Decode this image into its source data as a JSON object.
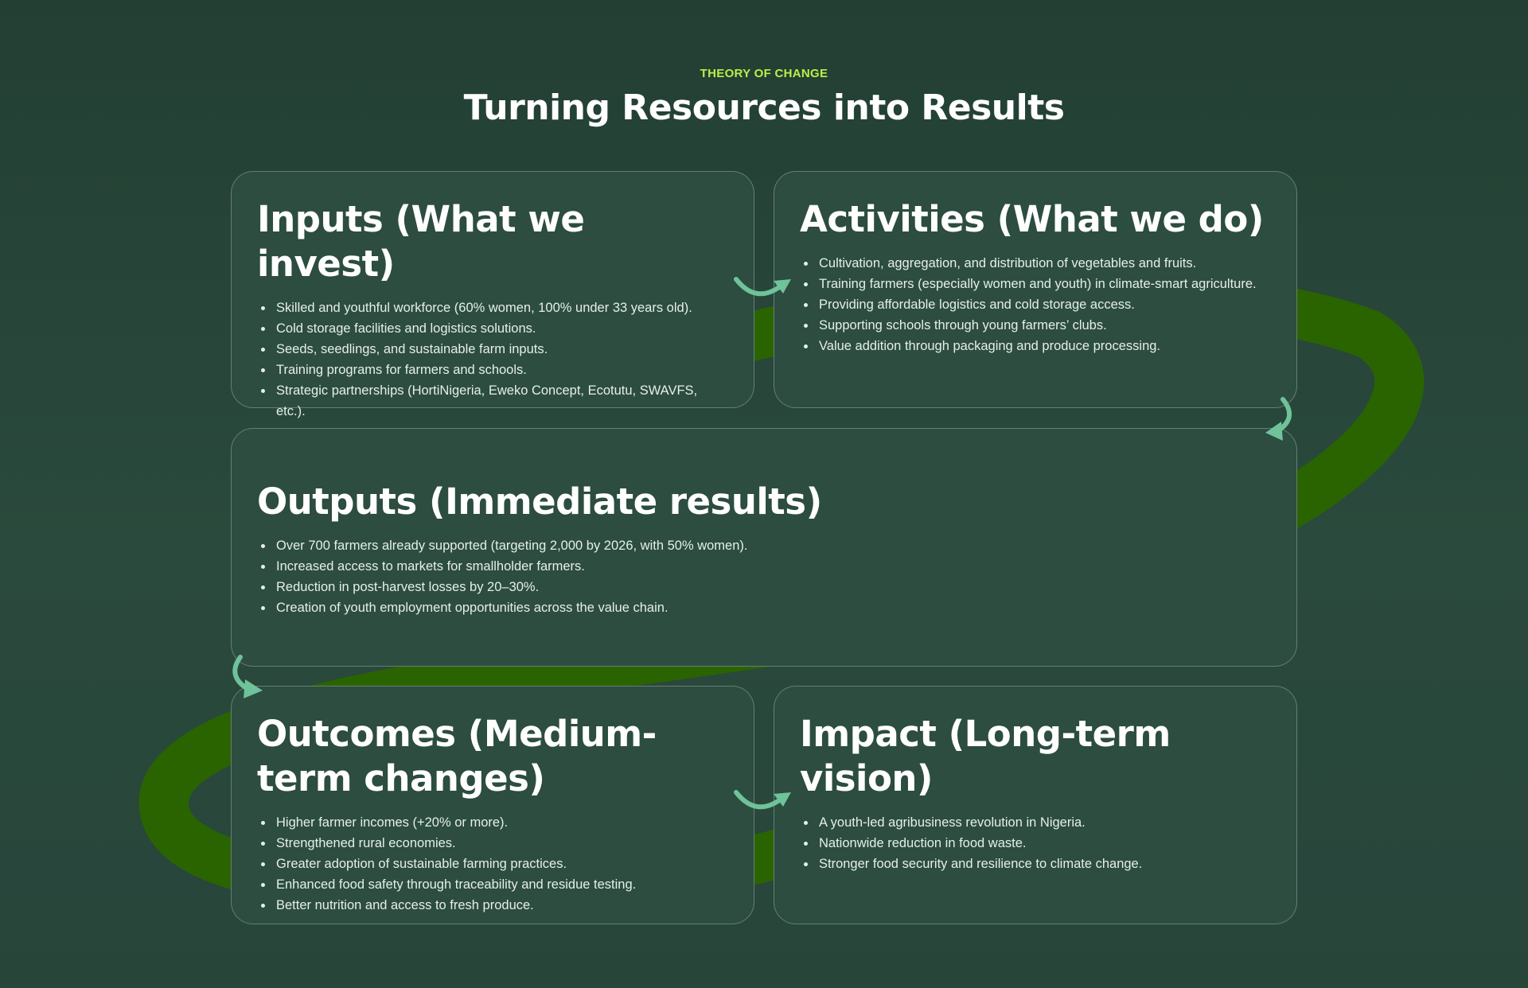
{
  "header": {
    "eyebrow": "THEORY OF CHANGE",
    "title": "Turning Resources into Results"
  },
  "colors": {
    "background": "#233f33",
    "card": "#2c4d3f",
    "accent": "#b8ef48",
    "loop": "#2a6400",
    "arrow": "#6fc29a"
  },
  "cards": {
    "inputs": {
      "title": "Inputs (What we invest)",
      "items": [
        "Skilled and youthful workforce (60% women, 100% under 33 years old).",
        "Cold storage facilities and logistics solutions.",
        "Seeds, seedlings, and sustainable farm inputs.",
        "Training programs for farmers and schools.",
        "Strategic partnerships (HortiNigeria, Eweko Concept, Ecotutu, SWAVFS, etc.)."
      ]
    },
    "activities": {
      "title": "Activities (What we do)",
      "items": [
        "Cultivation, aggregation, and distribution of vegetables and fruits.",
        "Training farmers (especially women and youth) in climate-smart agriculture.",
        "Providing affordable logistics and cold storage access.",
        "Supporting schools through young farmers’ clubs.",
        "Value addition through packaging and produce processing."
      ]
    },
    "outputs": {
      "title": "Outputs (Immediate results)",
      "items": [
        "Over 700 farmers already supported (targeting 2,000 by 2026, with 50% women).",
        "Increased access to markets for smallholder farmers.",
        "Reduction in post-harvest losses by 20–30%.",
        "Creation of youth employment opportunities across the value chain."
      ]
    },
    "outcomes": {
      "title": "Outcomes (Medium-term changes)",
      "items": [
        "Higher farmer incomes (+20% or more).",
        "Strengthened rural economies.",
        "Greater adoption of sustainable farming practices.",
        "Enhanced food safety through traceability and residue testing.",
        "Better nutrition and access to fresh produce."
      ]
    },
    "impact": {
      "title": "Impact (Long-term vision)",
      "items": [
        "A youth-led agribusiness revolution in Nigeria.",
        "Nationwide reduction in food waste.",
        "Stronger food security and resilience to climate change."
      ]
    }
  }
}
